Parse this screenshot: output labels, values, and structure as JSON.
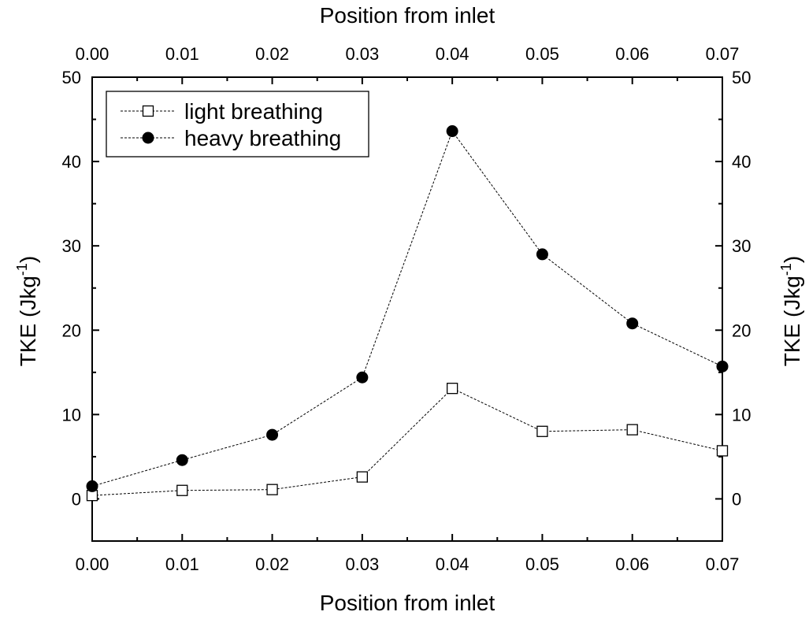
{
  "chart_data": {
    "type": "line",
    "title": "",
    "xlabel": "Position from inlet",
    "x2label": "Position from inlet",
    "ylabel": "TKE (Jkg",
    "ylabel_sup": "-1",
    "ylabel_close": ")",
    "xlim": [
      0.0,
      0.07
    ],
    "ylim": [
      -5,
      50
    ],
    "x_ticks": [
      0.0,
      0.01,
      0.02,
      0.03,
      0.04,
      0.05,
      0.06,
      0.07
    ],
    "x_tick_labels": [
      "0.00",
      "0.01",
      "0.02",
      "0.03",
      "0.04",
      "0.05",
      "0.06",
      "0.07"
    ],
    "y_ticks": [
      0,
      10,
      20,
      30,
      40,
      50
    ],
    "y_tick_labels": [
      "0",
      "10",
      "20",
      "30",
      "40",
      "50"
    ],
    "grid": false,
    "legend_position": "top-left",
    "x": [
      0.0,
      0.01,
      0.02,
      0.03,
      0.04,
      0.05,
      0.06,
      0.07
    ],
    "series": [
      {
        "name": "light breathing",
        "marker": "open-square",
        "values": [
          0.4,
          1.0,
          1.1,
          2.6,
          13.1,
          8.0,
          8.2,
          5.7
        ]
      },
      {
        "name": "heavy breathing",
        "marker": "filled-circle",
        "values": [
          1.5,
          4.6,
          7.6,
          14.4,
          43.6,
          29.0,
          20.8,
          15.7
        ]
      }
    ],
    "colors": {
      "line": "#000000",
      "background": "#ffffff"
    }
  }
}
